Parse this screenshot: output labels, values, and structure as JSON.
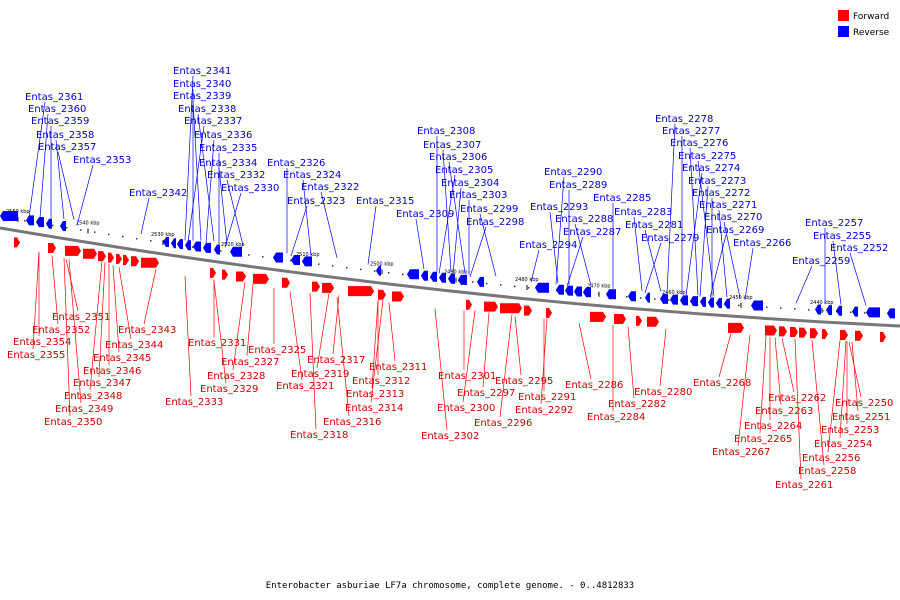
{
  "caption": "Enterobacter asburiae LF7a chromosome, complete genome. - 0..4812833",
  "legend": [
    {
      "label": "Forward",
      "color": "#ff0000"
    },
    {
      "label": "Reverse",
      "color": "#0000ff"
    }
  ],
  "ticks": [
    "2550 kbp",
    "2540 kbp",
    "2530 kbp",
    "2520 kbp",
    "2510 kbp",
    "2500 kbp",
    "2490 kbp",
    "2480 kbp",
    "2470 kbp",
    "2460 kbp",
    "2450 kbp",
    "2440 kbp"
  ],
  "reverse_labels": [
    "Entas_2361",
    "Entas_2360",
    "Entas_2359",
    "Entas_2358",
    "Entas_2357",
    "Entas_2353",
    "Entas_2341",
    "Entas_2340",
    "Entas_2339",
    "Entas_2338",
    "Entas_2337",
    "Entas_2336",
    "Entas_2335",
    "Entas_2334",
    "Entas_2332",
    "Entas_2330",
    "Entas_2342",
    "Entas_2326",
    "Entas_2324",
    "Entas_2322",
    "Entas_2323",
    "Entas_2315",
    "Entas_2308",
    "Entas_2307",
    "Entas_2306",
    "Entas_2305",
    "Entas_2304",
    "Entas_2303",
    "Entas_2309",
    "Entas_2299",
    "Entas_2298",
    "Entas_2290",
    "Entas_2289",
    "Entas_2293",
    "Entas_2288",
    "Entas_2287",
    "Entas_2294",
    "Entas_2285",
    "Entas_2283",
    "Entas_2281",
    "Entas_2279",
    "Entas_2278",
    "Entas_2277",
    "Entas_2276",
    "Entas_2275",
    "Entas_2274",
    "Entas_2273",
    "Entas_2272",
    "Entas_2271",
    "Entas_2270",
    "Entas_2269",
    "Entas_2266",
    "Entas_2257",
    "Entas_2255",
    "Entas_2252",
    "Entas_2259"
  ],
  "forward_labels": [
    "Entas_2351",
    "Entas_2352",
    "Entas_2354",
    "Entas_2355",
    "Entas_2343",
    "Entas_2344",
    "Entas_2345",
    "Entas_2346",
    "Entas_2347",
    "Entas_2348",
    "Entas_2349",
    "Entas_2350",
    "Entas_2331",
    "Entas_2327",
    "Entas_2328",
    "Entas_2329",
    "Entas_2333",
    "Entas_2325",
    "Entas_2317",
    "Entas_2319",
    "Entas_2321",
    "Entas_2311",
    "Entas_2312",
    "Entas_2313",
    "Entas_2314",
    "Entas_2316",
    "Entas_2318",
    "Entas_2301",
    "Entas_2297",
    "Entas_2300",
    "Entas_2302",
    "Entas_2295",
    "Entas_2291",
    "Entas_2292",
    "Entas_2296",
    "Entas_2286",
    "Entas_2282",
    "Entas_2284",
    "Entas_2280",
    "Entas_2268",
    "Entas_2262",
    "Entas_2263",
    "Entas_2264",
    "Entas_2265",
    "Entas_2267",
    "Entas_2250",
    "Entas_2251",
    "Entas_2253",
    "Entas_2254",
    "Entas_2256",
    "Entas_2258",
    "Entas_2261"
  ]
}
